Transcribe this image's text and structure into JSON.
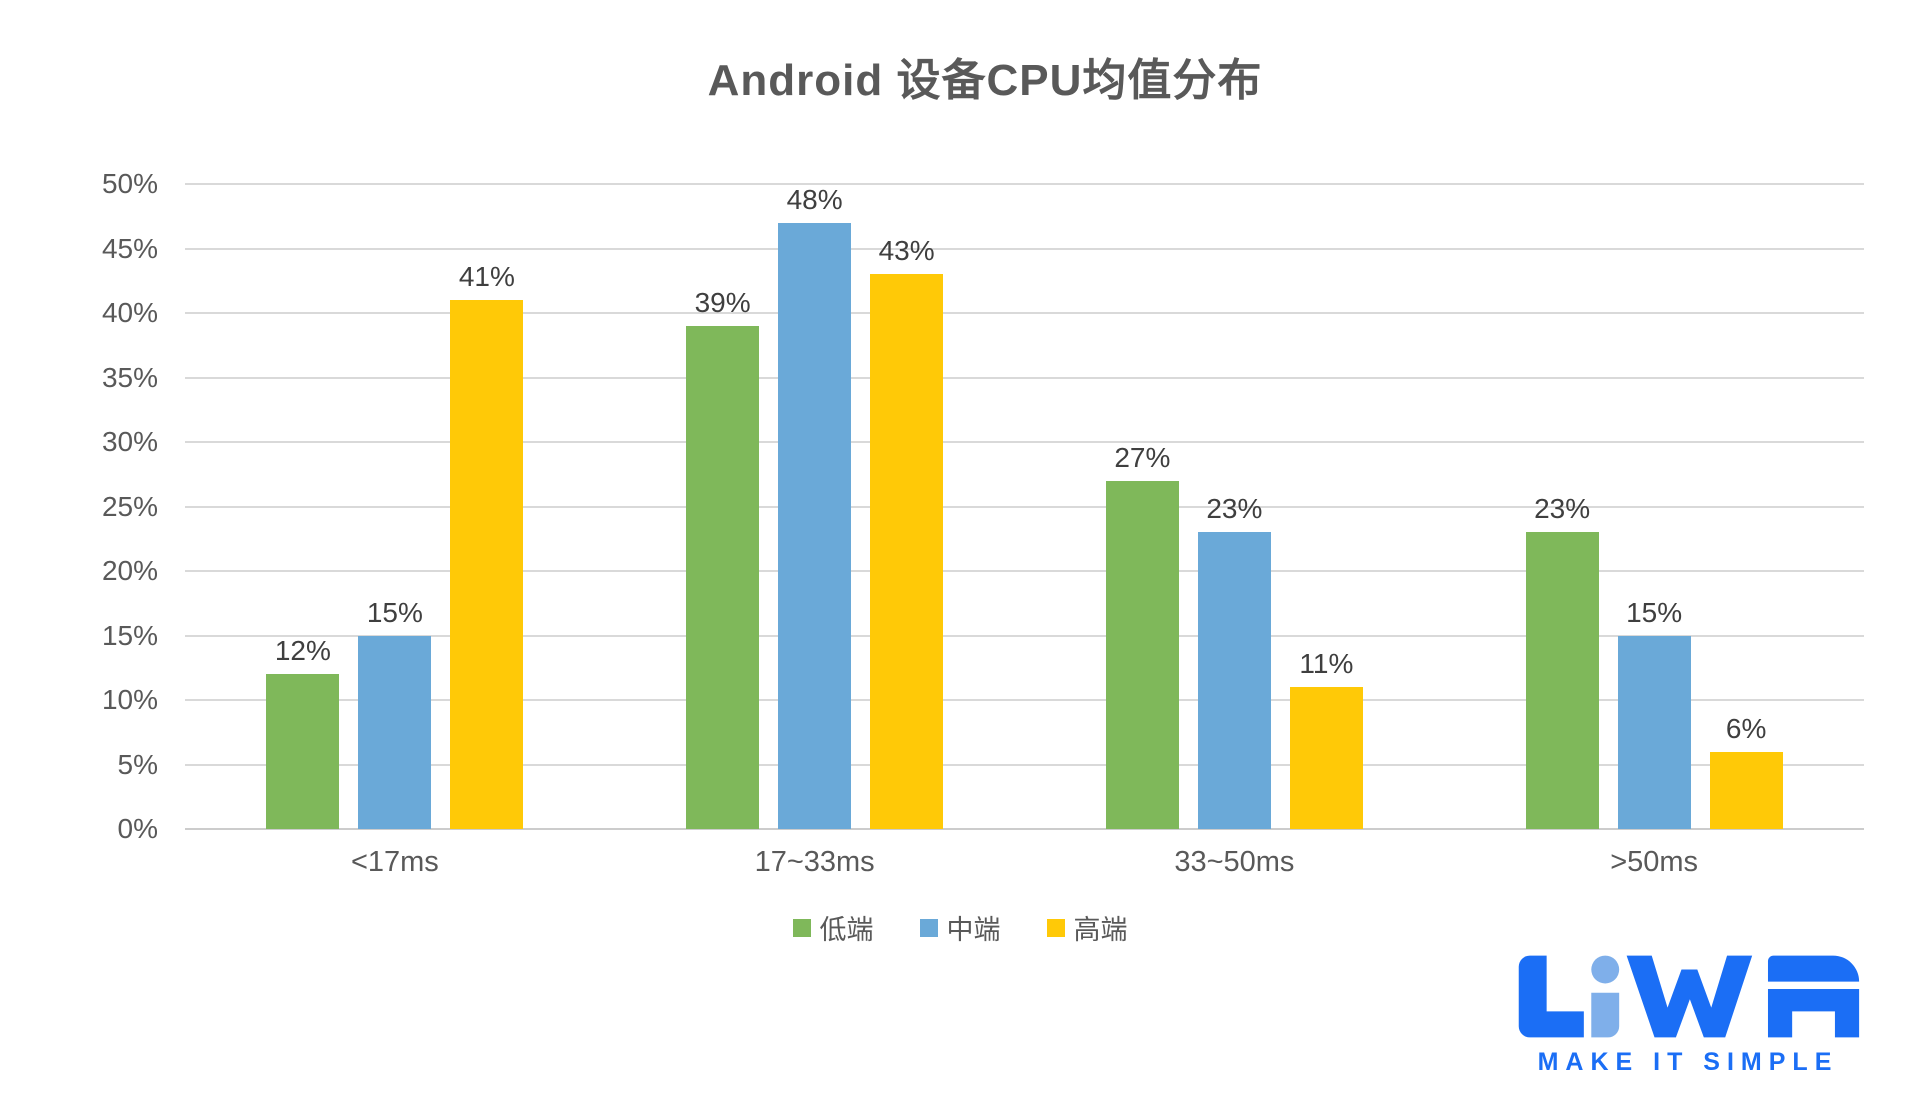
{
  "chart_data": {
    "type": "bar",
    "title": "Android 设备CPU均值分布",
    "categories": [
      "<17ms",
      "17~33ms",
      "33~50ms",
      ">50ms"
    ],
    "series": [
      {
        "name": "低端",
        "color": "#7fb85a",
        "values": [
          12,
          39,
          27,
          23
        ]
      },
      {
        "name": "中端",
        "color": "#6aa9d8",
        "values": [
          15,
          48,
          23,
          15
        ]
      },
      {
        "name": "高端",
        "color": "#ffc907",
        "values": [
          41,
          43,
          11,
          6
        ]
      }
    ],
    "value_suffix": "%",
    "ylim": [
      0,
      50
    ],
    "ytick_step": 5,
    "ytick_labels": [
      "0%",
      "5%",
      "10%",
      "15%",
      "20%",
      "25%",
      "30%",
      "35%",
      "40%",
      "45%",
      "50%"
    ],
    "grid": "horizontal",
    "legend_position": "bottom",
    "colors": {
      "axis_text": "#595959",
      "data_label_text": "#3f3f3f",
      "gridline": "#d9d9d9",
      "title_text": "#595959"
    }
  },
  "logo": {
    "text": "LiWA",
    "tagline": "MAKE IT SIMPLE",
    "color": "#1b6ef5",
    "accent_color": "#7fafea"
  }
}
